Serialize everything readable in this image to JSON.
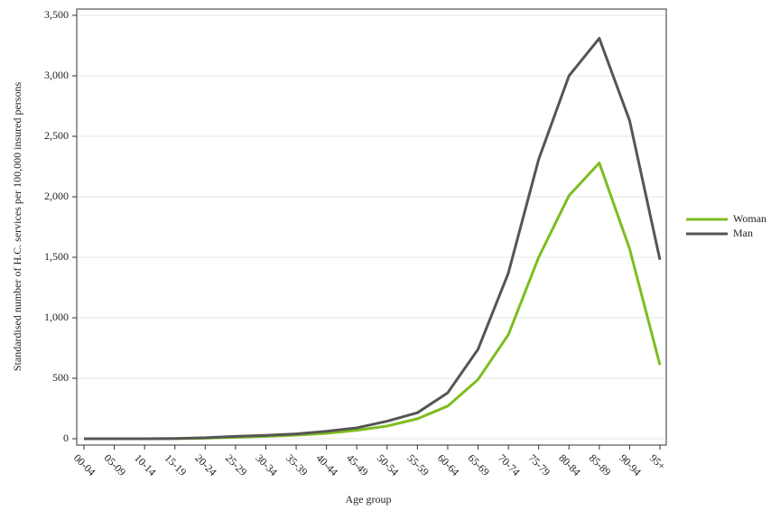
{
  "chart_data": {
    "type": "line",
    "x_label": "Age group",
    "y_label": "Standardised number of H.C. services per 100,000 insured persons",
    "categories": [
      "00-04",
      "05-09",
      "10-14",
      "15-19",
      "20-24",
      "25-29",
      "30-34",
      "35-39",
      "40-44",
      "45-49",
      "50-54",
      "55-59",
      "60-64",
      "65-69",
      "70-74",
      "75-79",
      "80-84",
      "85-89",
      "90-94",
      "95+"
    ],
    "series": [
      {
        "name": "Woman",
        "color": "#7dbd1f",
        "values": [
          0,
          0,
          0,
          1,
          5,
          12,
          20,
          30,
          45,
          70,
          105,
          165,
          270,
          490,
          860,
          1500,
          2010,
          2280,
          1570,
          610
        ]
      },
      {
        "name": "Man",
        "color": "#555555",
        "values": [
          0,
          0,
          0,
          2,
          8,
          20,
          28,
          40,
          62,
          90,
          145,
          215,
          380,
          740,
          1370,
          2310,
          3000,
          3310,
          2630,
          1480
        ]
      }
    ],
    "ylim": [
      0,
      3500
    ],
    "yticks": [
      0,
      500,
      {
        "value": 1000,
        "label": "1,000"
      },
      {
        "value": 1500,
        "label": "1,500"
      },
      {
        "value": 2000,
        "label": "2,000"
      },
      {
        "value": 2500,
        "label": "2,500"
      },
      {
        "value": 3000,
        "label": "3,000"
      },
      {
        "value": 3500,
        "label": "3,500"
      }
    ],
    "grid": true,
    "legend": "right"
  }
}
